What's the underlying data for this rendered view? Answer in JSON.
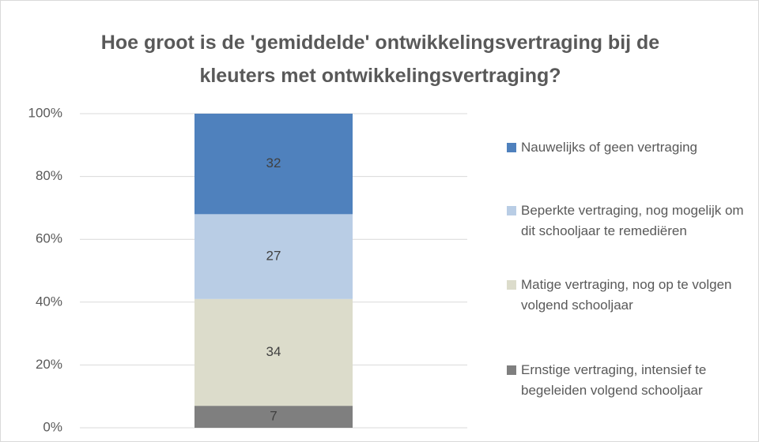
{
  "chart_data": {
    "type": "stacked_bar",
    "title": "Hoe groot is de 'gemiddelde' ontwikkelingsvertraging bij de kleuters met ontwikkelingsvertraging?",
    "categories": [
      null
    ],
    "series": [
      {
        "name": "Ernstige vertraging, intensief te begeleiden volgend schooljaar",
        "color": "#7f7f7f",
        "values": [
          7
        ]
      },
      {
        "name": "Matige vertraging, nog op te volgen volgend schooljaar",
        "color": "#dcdccb",
        "values": [
          34
        ]
      },
      {
        "name": "Beperkte vertraging, nog mogelijk om dit schooljaar te remediëren",
        "color": "#b9cde5",
        "values": [
          27
        ]
      },
      {
        "name": "Nauwelijks of geen vertraging",
        "color": "#4f81bd",
        "values": [
          32
        ]
      }
    ],
    "ylim": [
      0,
      100
    ],
    "yticks": [
      {
        "value": 0,
        "label": "0%"
      },
      {
        "value": 20,
        "label": "20%"
      },
      {
        "value": 40,
        "label": "40%"
      },
      {
        "value": 60,
        "label": "60%"
      },
      {
        "value": 80,
        "label": "80%"
      },
      {
        "value": 100,
        "label": "100%"
      }
    ],
    "grid": true,
    "legend": "right"
  }
}
